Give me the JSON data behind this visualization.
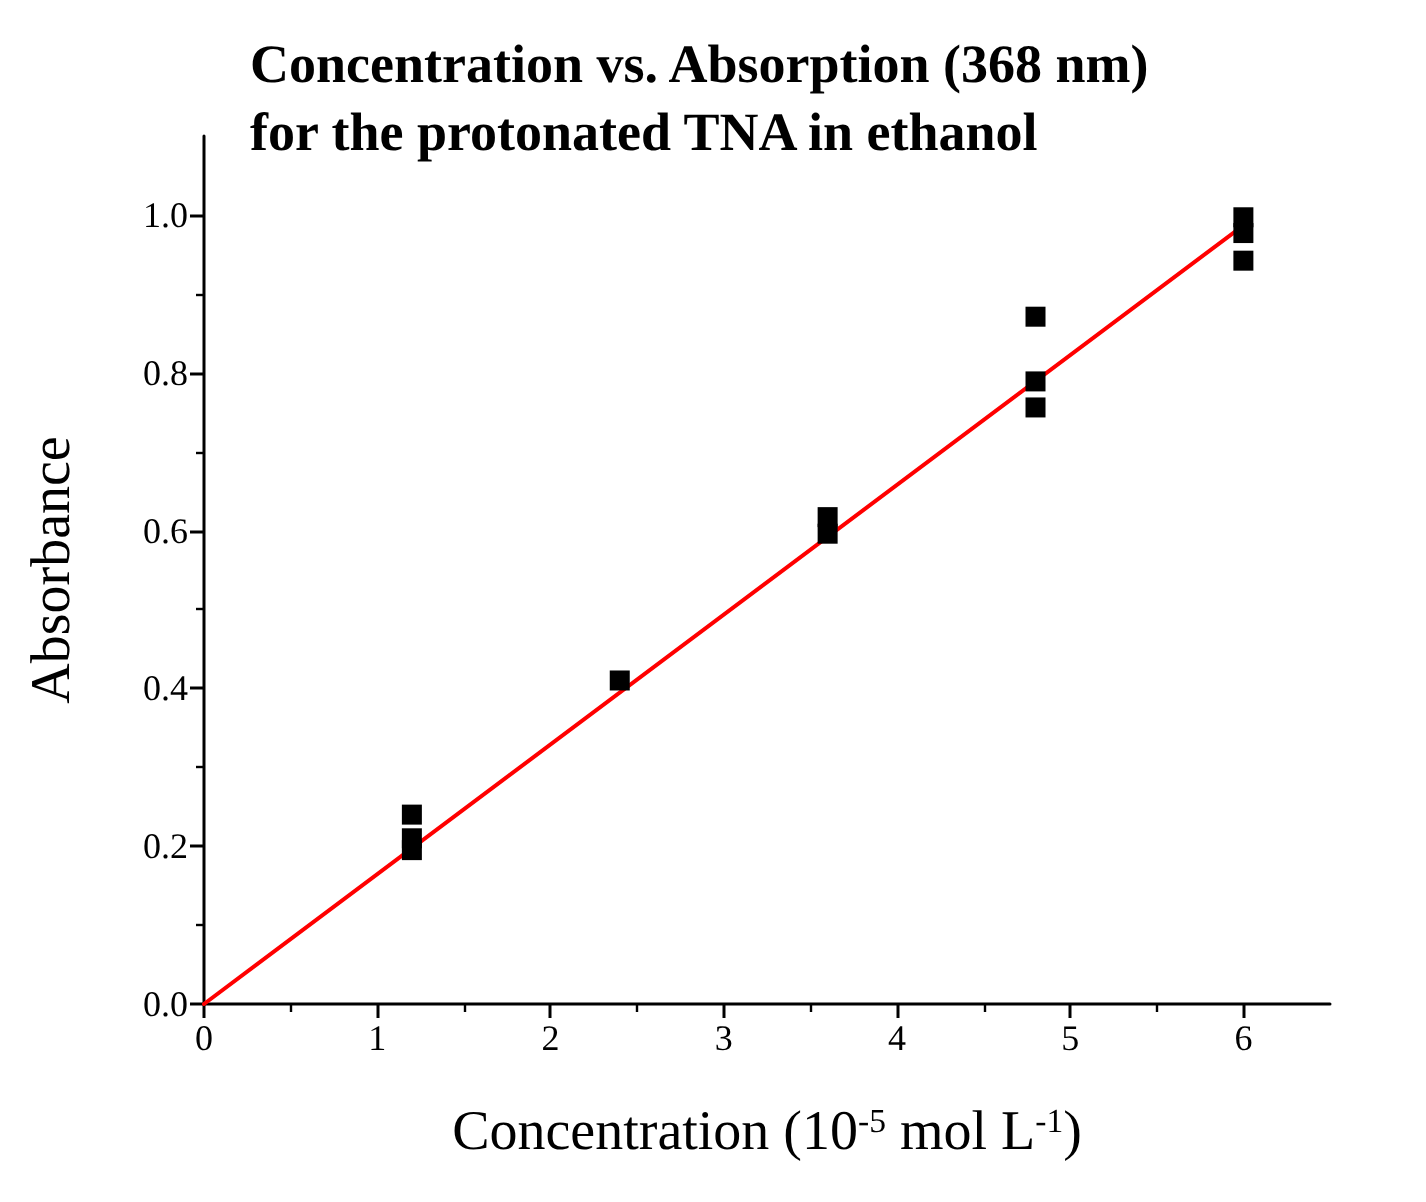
{
  "chart_data": {
    "type": "scatter",
    "title": "Concentration vs. Absorption (368 nm)\nfor the protonated TNA in ethanol",
    "xlabel": "Concentration (10$^{-5}$ mol L$^{-1}$)",
    "ylabel": "Absorbance",
    "series": [
      {
        "color": "#000000",
        "marker": "square",
        "x": [
          1.2,
          1.2,
          1.2,
          2.4,
          3.6,
          3.6,
          4.8,
          4.8,
          4.8,
          6.0,
          6.0,
          6.0
        ],
        "values": [
          0.24,
          0.21,
          0.195,
          0.41,
          0.617,
          0.596,
          0.871,
          0.789,
          0.756,
          0.997,
          0.977,
          0.942
        ]
      },
      {
        "type": "line",
        "color": "#ff0000",
        "marker": "none",
        "line_style": "solid",
        "x": [
          0,
          6.02
        ],
        "values": [
          0,
          0.99
        ]
      }
    ],
    "xlim": [
      0,
      6.5
    ],
    "xticks": [
      0,
      1,
      2,
      3,
      4,
      5,
      6
    ],
    "ylim": [
      0,
      1.1
    ],
    "yticks": [
      {
        "value": 0,
        "label": "0.0"
      },
      {
        "value": 0.2,
        "label": "0.2"
      },
      {
        "value": 0.4,
        "label": "0.4"
      },
      {
        "value": 0.6,
        "label": "0.6"
      },
      {
        "value": 0.8,
        "label": "0.8"
      },
      {
        "value": 1.0,
        "label": "1.0"
      }
    ],
    "grid": false
  }
}
